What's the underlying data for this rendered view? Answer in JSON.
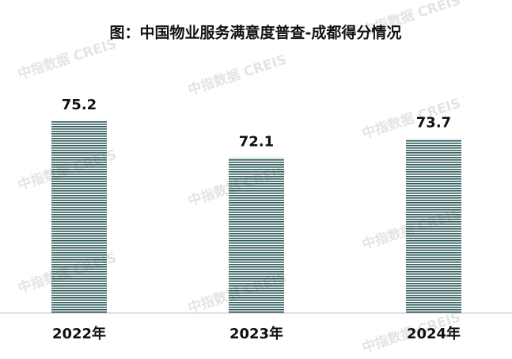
{
  "chart_data": {
    "type": "bar",
    "title": "图：中国物业服务满意度普查-成都得分情况",
    "categories": [
      "2022年",
      "2023年",
      "2024年"
    ],
    "values": [
      75.2,
      72.1,
      73.7
    ],
    "color": "#2e5a5a",
    "ylim": [
      59,
      76
    ],
    "watermark": "中指数据  CREIS"
  }
}
